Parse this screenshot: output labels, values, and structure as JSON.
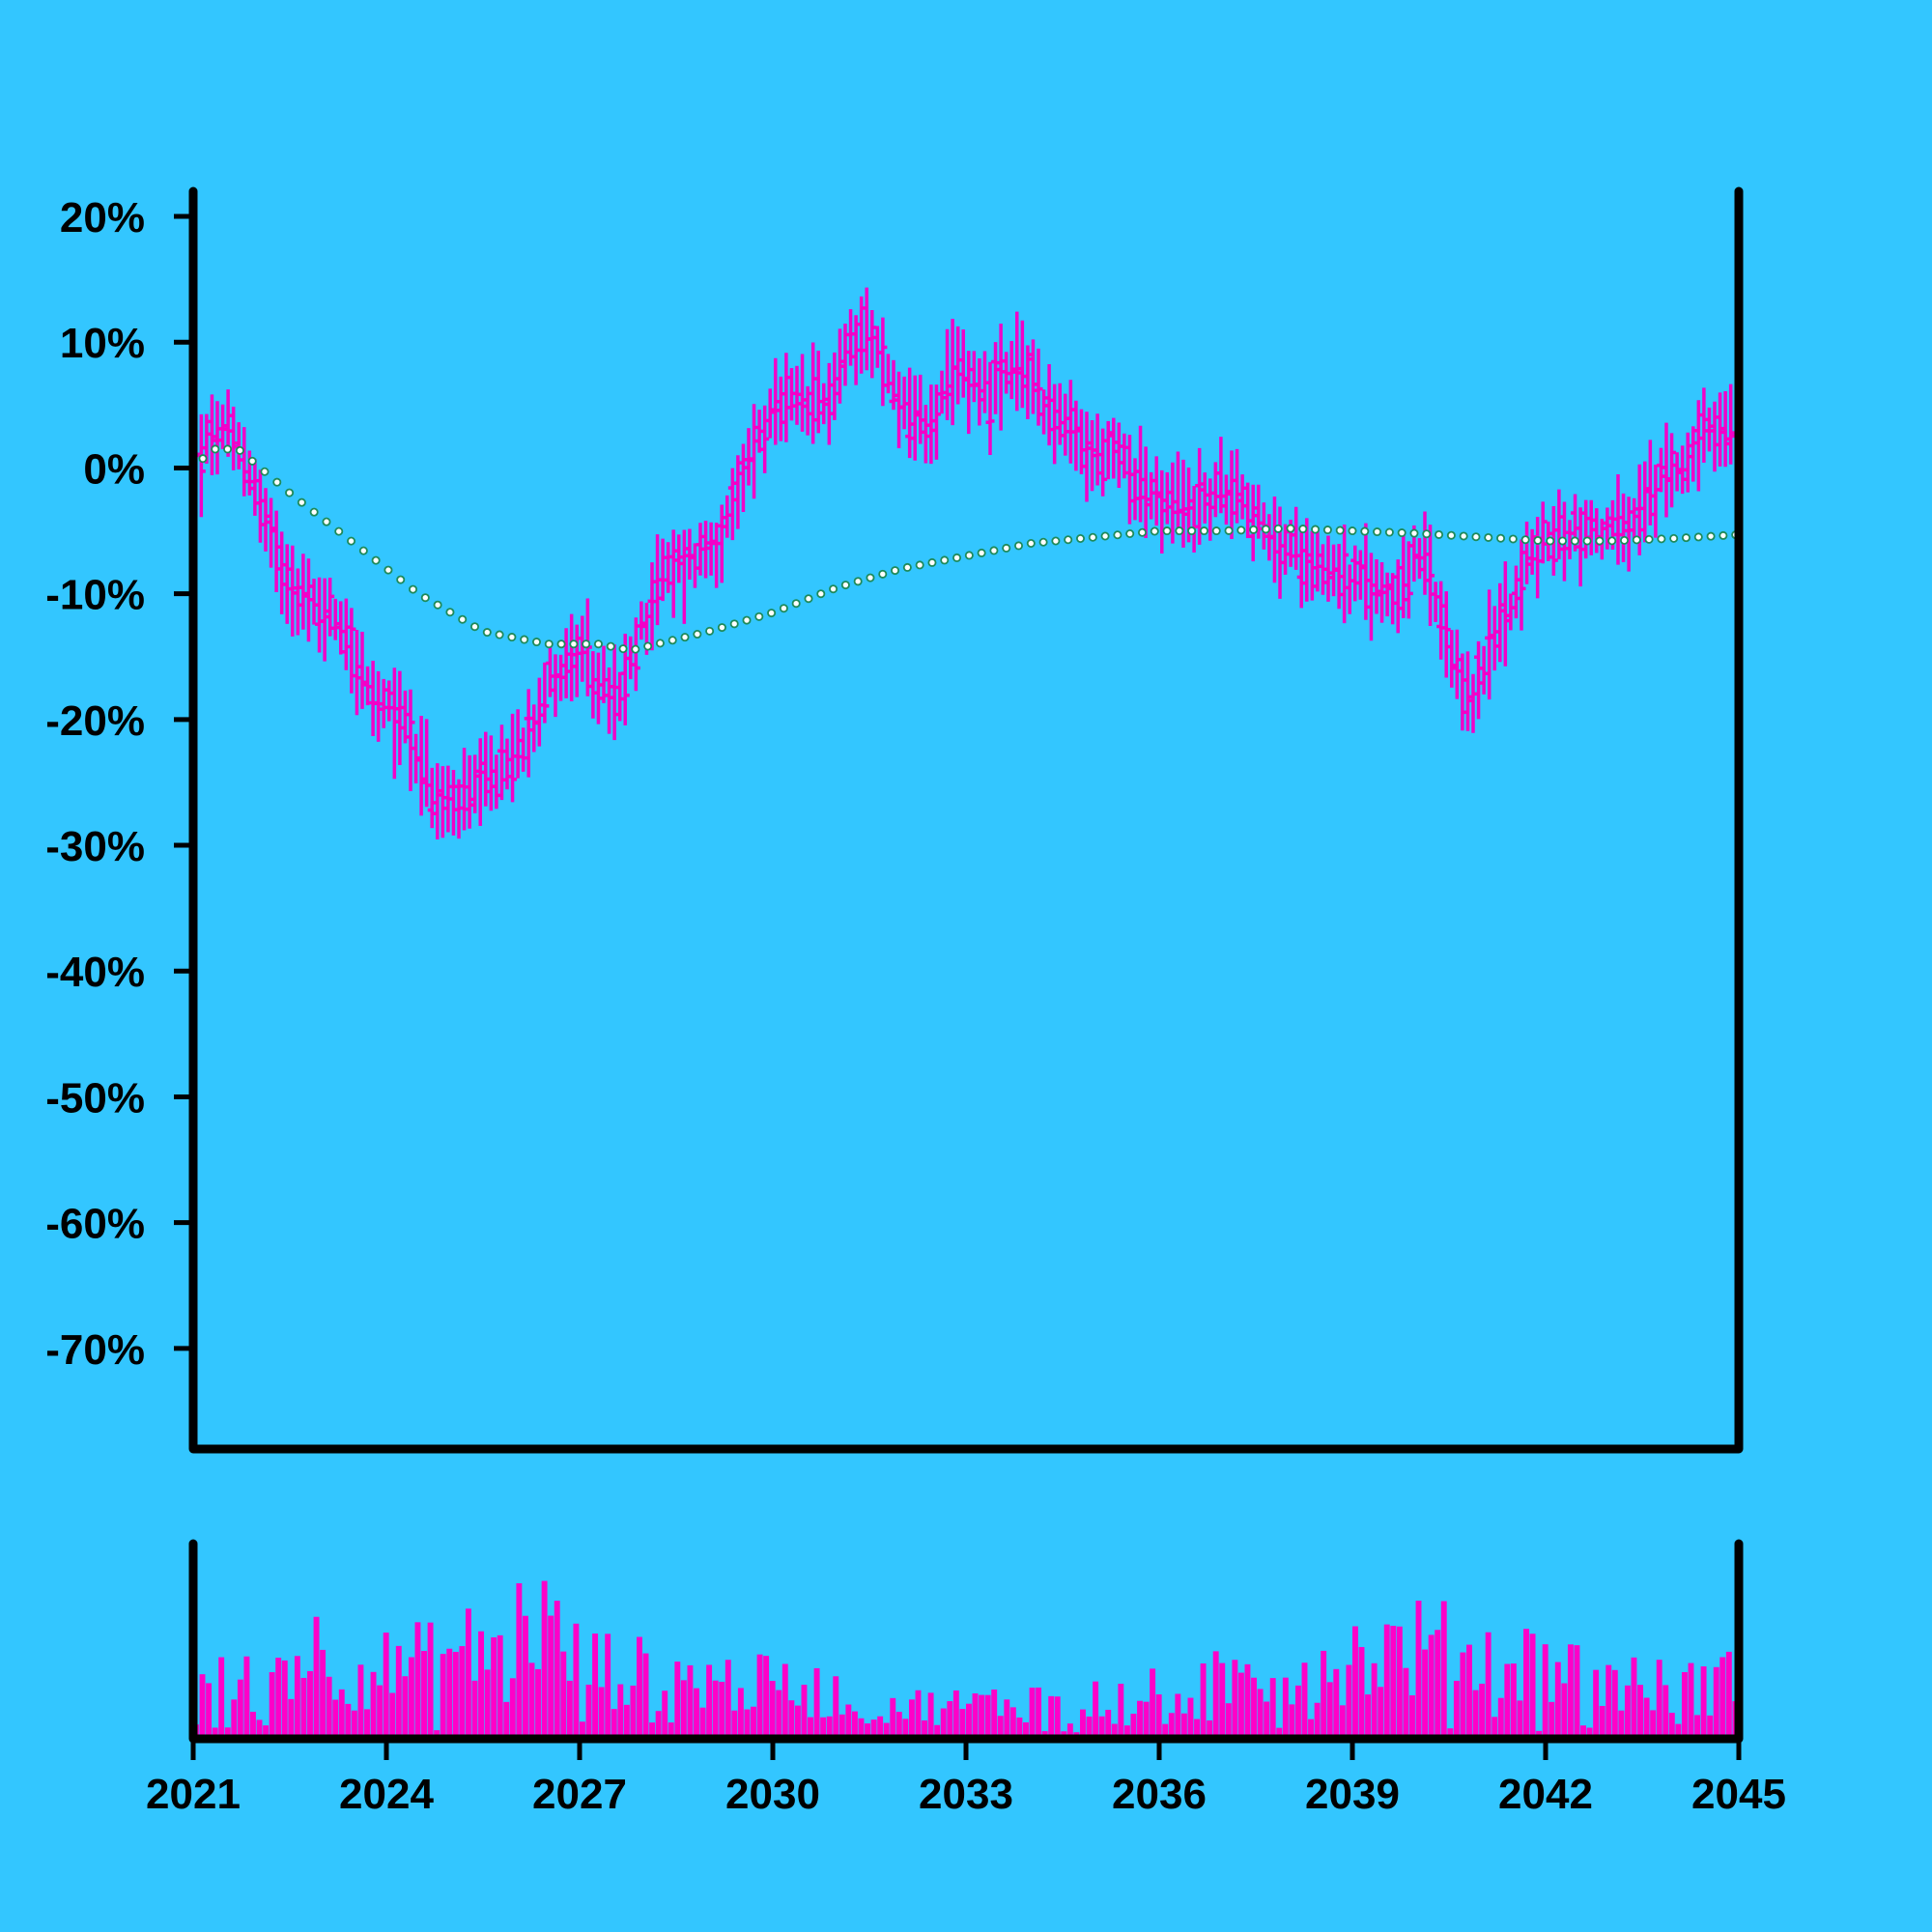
{
  "colors": {
    "background": "#33c6ff",
    "ohlc": "#f200c8",
    "volume": "#ff00c8",
    "moving_average_marker": "#1e8a5a",
    "axis": "#000000"
  },
  "chart_data": [
    {
      "type": "ohlc",
      "panel": "price",
      "title": "",
      "xlabel": "",
      "ylabel": "",
      "xlim": [
        2021.0,
        2045.0
      ],
      "ylim": [
        -78,
        22
      ],
      "y_ticks": [
        {
          "value": 20,
          "label": "20%"
        },
        {
          "value": 10,
          "label": "10%"
        },
        {
          "value": 0,
          "label": "0%"
        },
        {
          "value": -10,
          "label": "-10%"
        },
        {
          "value": -20,
          "label": "-20%"
        },
        {
          "value": -30,
          "label": "-30%"
        },
        {
          "value": -40,
          "label": "-40%"
        },
        {
          "value": -50,
          "label": "-50%"
        },
        {
          "value": -60,
          "label": "-60%"
        },
        {
          "value": -70,
          "label": "-70%"
        }
      ],
      "grid": false,
      "series": [
        {
          "kind": "ohlc",
          "bars_per_year": 12,
          "anchors": [
            {
              "year": 2021.0,
              "value": 0
            },
            {
              "year": 2021.4,
              "value": 3
            },
            {
              "year": 2021.8,
              "value": 1
            },
            {
              "year": 2022.3,
              "value": -7
            },
            {
              "year": 2022.8,
              "value": -11
            },
            {
              "year": 2023.3,
              "value": -12
            },
            {
              "year": 2023.8,
              "value": -19
            },
            {
              "year": 2024.3,
              "value": -20
            },
            {
              "year": 2024.8,
              "value": -27
            },
            {
              "year": 2025.4,
              "value": -26
            },
            {
              "year": 2026.0,
              "value": -23
            },
            {
              "year": 2026.5,
              "value": -17
            },
            {
              "year": 2027.0,
              "value": -15
            },
            {
              "year": 2027.6,
              "value": -19
            },
            {
              "year": 2028.2,
              "value": -9
            },
            {
              "year": 2028.8,
              "value": -7
            },
            {
              "year": 2029.3,
              "value": -5
            },
            {
              "year": 2029.7,
              "value": 2
            },
            {
              "year": 2030.2,
              "value": 5
            },
            {
              "year": 2030.8,
              "value": 5
            },
            {
              "year": 2031.4,
              "value": 12
            },
            {
              "year": 2031.9,
              "value": 6
            },
            {
              "year": 2032.4,
              "value": 3
            },
            {
              "year": 2032.9,
              "value": 8
            },
            {
              "year": 2033.4,
              "value": 6
            },
            {
              "year": 2033.9,
              "value": 8
            },
            {
              "year": 2034.4,
              "value": 4
            },
            {
              "year": 2034.9,
              "value": 1
            },
            {
              "year": 2035.4,
              "value": 1
            },
            {
              "year": 2036.0,
              "value": -3
            },
            {
              "year": 2036.6,
              "value": -3
            },
            {
              "year": 2037.2,
              "value": -1
            },
            {
              "year": 2037.7,
              "value": -6
            },
            {
              "year": 2038.4,
              "value": -7
            },
            {
              "year": 2039.0,
              "value": -9
            },
            {
              "year": 2039.6,
              "value": -10
            },
            {
              "year": 2040.1,
              "value": -7
            },
            {
              "year": 2040.6,
              "value": -17
            },
            {
              "year": 2040.9,
              "value": -18
            },
            {
              "year": 2041.4,
              "value": -11
            },
            {
              "year": 2041.9,
              "value": -6
            },
            {
              "year": 2042.4,
              "value": -5
            },
            {
              "year": 2042.8,
              "value": -5
            },
            {
              "year": 2043.3,
              "value": -5
            },
            {
              "year": 2043.8,
              "value": -1
            },
            {
              "year": 2044.4,
              "value": 2
            },
            {
              "year": 2045.0,
              "value": 3
            }
          ]
        },
        {
          "kind": "moving_average",
          "style": "open-circle markers",
          "anchors": [
            {
              "year": 2021.0,
              "value": 0
            },
            {
              "year": 2021.3,
              "value": 1.5
            },
            {
              "year": 2021.7,
              "value": 1.5
            },
            {
              "year": 2022.5,
              "value": -2
            },
            {
              "year": 2023.5,
              "value": -6
            },
            {
              "year": 2024.5,
              "value": -10
            },
            {
              "year": 2025.5,
              "value": -13
            },
            {
              "year": 2026.5,
              "value": -14
            },
            {
              "year": 2027.3,
              "value": -14
            },
            {
              "year": 2027.8,
              "value": -14.5
            },
            {
              "year": 2029.0,
              "value": -13
            },
            {
              "year": 2030.0,
              "value": -11.5
            },
            {
              "year": 2031.0,
              "value": -9.5
            },
            {
              "year": 2032.0,
              "value": -8
            },
            {
              "year": 2033.0,
              "value": -7
            },
            {
              "year": 2034.0,
              "value": -6
            },
            {
              "year": 2035.0,
              "value": -5.5
            },
            {
              "year": 2036.0,
              "value": -5
            },
            {
              "year": 2037.0,
              "value": -5
            },
            {
              "year": 2038.0,
              "value": -4.8
            },
            {
              "year": 2039.0,
              "value": -5
            },
            {
              "year": 2040.0,
              "value": -5.2
            },
            {
              "year": 2041.0,
              "value": -5.5
            },
            {
              "year": 2042.0,
              "value": -5.8
            },
            {
              "year": 2043.0,
              "value": -5.8
            },
            {
              "year": 2044.0,
              "value": -5.6
            },
            {
              "year": 2045.0,
              "value": -5.3
            }
          ]
        }
      ]
    },
    {
      "type": "bar",
      "panel": "volume",
      "title": "",
      "xlabel": "",
      "ylabel": "",
      "xlim": [
        2021.0,
        2045.0
      ],
      "x_ticks": [
        {
          "value": 2021,
          "label": "2021"
        },
        {
          "value": 2024,
          "label": "2024"
        },
        {
          "value": 2027,
          "label": "2027"
        },
        {
          "value": 2030,
          "label": "2030"
        },
        {
          "value": 2033,
          "label": "2033"
        },
        {
          "value": 2036,
          "label": "2036"
        },
        {
          "value": 2039,
          "label": "2039"
        },
        {
          "value": 2042,
          "label": "2042"
        },
        {
          "value": 2045,
          "label": "2045"
        }
      ],
      "grid": false,
      "volume_level_anchors": [
        {
          "year": 2021.0,
          "value": 0.3
        },
        {
          "year": 2022.0,
          "value": 0.35
        },
        {
          "year": 2022.8,
          "value": 0.55
        },
        {
          "year": 2023.5,
          "value": 0.4
        },
        {
          "year": 2024.5,
          "value": 0.45
        },
        {
          "year": 2025.5,
          "value": 0.55
        },
        {
          "year": 2026.3,
          "value": 0.75
        },
        {
          "year": 2027.0,
          "value": 0.45
        },
        {
          "year": 2027.8,
          "value": 0.4
        },
        {
          "year": 2029.0,
          "value": 0.35
        },
        {
          "year": 2030.5,
          "value": 0.3
        },
        {
          "year": 2032.0,
          "value": 0.2
        },
        {
          "year": 2033.0,
          "value": 0.2
        },
        {
          "year": 2034.5,
          "value": 0.25
        },
        {
          "year": 2035.5,
          "value": 0.25
        },
        {
          "year": 2036.5,
          "value": 0.3
        },
        {
          "year": 2037.5,
          "value": 0.4
        },
        {
          "year": 2039.0,
          "value": 0.5
        },
        {
          "year": 2040.0,
          "value": 0.55
        },
        {
          "year": 2041.0,
          "value": 0.5
        },
        {
          "year": 2042.0,
          "value": 0.45
        },
        {
          "year": 2043.0,
          "value": 0.35
        },
        {
          "year": 2044.0,
          "value": 0.3
        },
        {
          "year": 2045.0,
          "value": 0.35
        }
      ]
    }
  ]
}
